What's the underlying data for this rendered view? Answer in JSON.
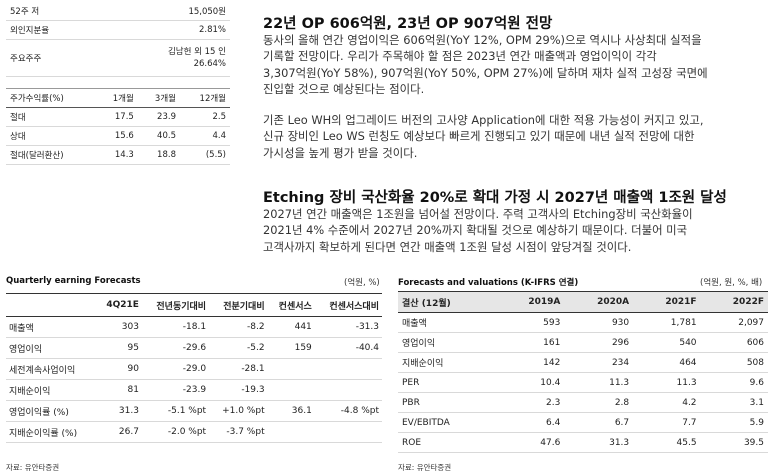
{
  "stock_info": [
    {
      "label": "52주 저",
      "value": [
        "15,050원"
      ]
    },
    {
      "label": "외인지분율",
      "value": [
        "2.81%"
      ]
    },
    {
      "label": "주요주주",
      "value": [
        "김남헌 외 15 인",
        "26.64%"
      ]
    }
  ],
  "performance": {
    "headers": [
      "주가수익률(%)",
      "1개월",
      "3개월",
      "12개월"
    ],
    "rows": [
      [
        "절대",
        "17.5",
        "23.9",
        "2.5"
      ],
      [
        "상대",
        "15.6",
        "40.5",
        "4.4"
      ],
      [
        "절대(달러환산)",
        "14.3",
        "18.8",
        "(5.5)"
      ]
    ]
  },
  "article": {
    "heading1": "22년 OP 606억원, 23년 OP 907억원 전망",
    "para1_lines": [
      "동사의 올해 연간 영업이익은 606억원(YoY 12%, OPM 29%)으로 역시나 사상최대 실적을",
      "기록할 전망이다. 우리가 주목해야 할 점은 2023년 연간 매출액과 영업이익이 각각",
      "3,307억원(YoY 58%), 907억원(YoY 50%, OPM 27%)에 달하며 재차 실적 고성장 국면에",
      "진입할 것으로 예상된다는 점이다."
    ],
    "para2_lines": [
      "기존 Leo WH의 업그레이드 버전의 고사양 Application에 대한 적용 가능성이 커지고 있고,",
      "신규 장비인 Leo WS 런칭도 예상보다 빠르게 진행되고 있기 때문에 내년 실적 전망에 대한",
      "가시성을 높게 평가 받을 것이다."
    ],
    "heading2": "Etching 장비 국산화율 20%로 확대 가정 시 2027년 매출액 1조원 달성",
    "para3_lines": [
      "2027년 연간 매출액은 1조원을 넘어설 전망이다. 주력 고객사의 Etching장비 국산화율이",
      "2021년 4% 수준에서 2027년 20%까지 확대될 것으로 예상하기 때문이다. 더불어 미국",
      "고객사까지 확보하게 된다면 연간 매출액 1조원 달성 시점이 앞당겨질 것이다."
    ]
  },
  "quarterly": {
    "title": "Quarterly earning Forecasts",
    "unit": "(억원, %)",
    "headers": [
      "",
      "4Q21E",
      "전년동기대비",
      "전분기대비",
      "컨센서스",
      "컨센서스대비"
    ],
    "rows": [
      [
        "매출액",
        "303",
        "-18.1",
        "-8.2",
        "441",
        "-31.3"
      ],
      [
        "영업이익",
        "95",
        "-29.6",
        "-5.2",
        "159",
        "-40.4"
      ],
      [
        "세전계속사업이익",
        "90",
        "-29.0",
        "-28.1",
        "",
        ""
      ],
      [
        "지배순이익",
        "81",
        "-23.9",
        "-19.3",
        "",
        ""
      ],
      [
        "영업이익률 (%)",
        "31.3",
        "-5.1 %pt",
        "+1.0 %pt",
        "36.1",
        "-4.8 %pt"
      ],
      [
        "지배순이익률 (%)",
        "26.7",
        "-2.0 %pt",
        "-3.7 %pt",
        "",
        ""
      ]
    ],
    "source": "자료: 유안타증권"
  },
  "forecasts": {
    "title": "Forecasts and valuations (K-IFRS 연결)",
    "unit": "(억원, 원, %, 배)",
    "headers": [
      "결산 (12월)",
      "2019A",
      "2020A",
      "2021F",
      "2022F"
    ],
    "rows": [
      [
        "매출액",
        "593",
        "930",
        "1,781",
        "2,097"
      ],
      [
        "영업이익",
        "161",
        "296",
        "540",
        "606"
      ],
      [
        "지배순이익",
        "142",
        "234",
        "464",
        "508"
      ],
      [
        "PER",
        "10.4",
        "11.3",
        "11.3",
        "9.6"
      ],
      [
        "PBR",
        "2.3",
        "2.8",
        "4.2",
        "3.1"
      ],
      [
        "EV/EBITDA",
        "6.4",
        "6.7",
        "7.7",
        "5.9"
      ],
      [
        "ROE",
        "47.6",
        "31.3",
        "45.5",
        "39.5"
      ]
    ],
    "source": "자료: 유안타증권"
  }
}
